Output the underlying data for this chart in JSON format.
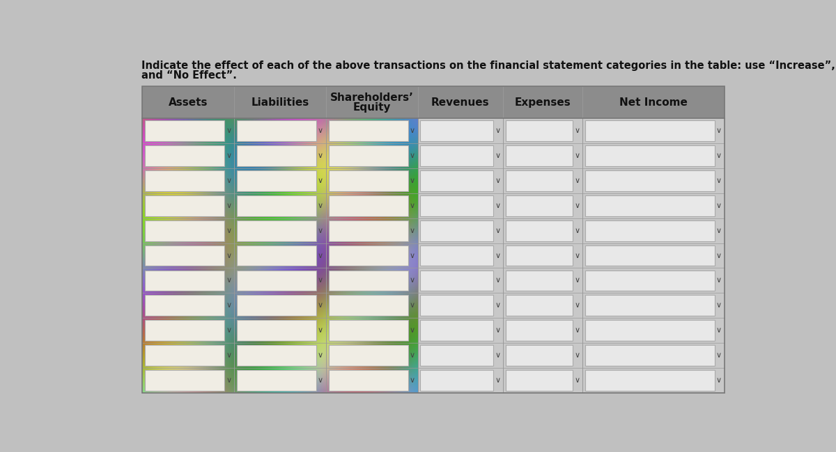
{
  "title_line1": "Indicate the effect of each of the above transactions on the financial statement categories in the table: use “Increase”, “Decrease”,",
  "title_line2": "and “No Effect”.",
  "header_labels": [
    "Assets",
    "Liabilities",
    "Shareholders’\nEquity",
    "Revenues",
    "Expenses",
    "Net Income"
  ],
  "num_rows": 11,
  "text_color": "#000000",
  "header_bg": "#8a8a8a",
  "cell_fill_left": "#e8e4d8",
  "cell_fill_right": "#dcdcdc",
  "cell_border": "#aaaaaa",
  "page_bg_top": "#c8c8c8",
  "page_bg_bottom": "#d0d0d0"
}
